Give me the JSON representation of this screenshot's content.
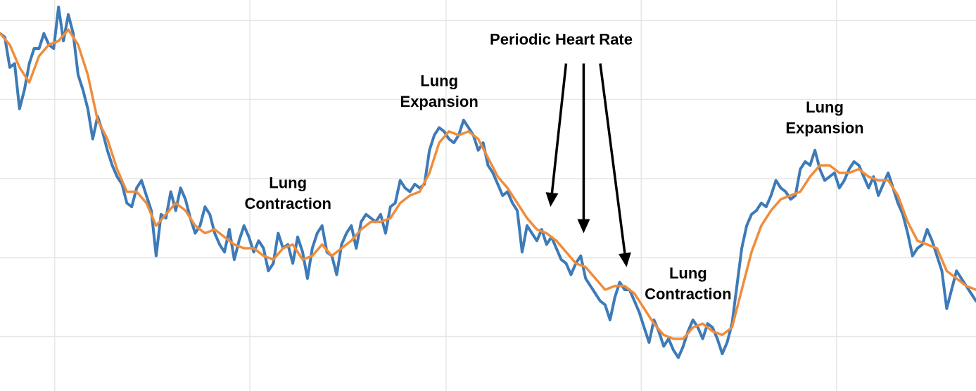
{
  "chart_data": {
    "type": "line",
    "title": "",
    "xlabel": "",
    "ylabel": "",
    "grid": true,
    "xlim": [
      0,
      100
    ],
    "ylim": [
      0,
      100
    ],
    "x_gridlines": [
      5.6,
      25.6,
      45.7,
      65.7,
      85.7
    ],
    "y_gridlines": [
      12.6,
      33.5,
      54.5,
      75.5,
      96.4
    ],
    "series": [
      {
        "color": "#3d7ab8",
        "values": [
          [
            0,
            93
          ],
          [
            0.5,
            92
          ],
          [
            1,
            84
          ],
          [
            1.5,
            85
          ],
          [
            2,
            73
          ],
          [
            2.5,
            78
          ],
          [
            3,
            85
          ],
          [
            3.5,
            89
          ],
          [
            4,
            89
          ],
          [
            4.5,
            93
          ],
          [
            5,
            90
          ],
          [
            5.5,
            89
          ],
          [
            6,
            100
          ],
          [
            6.5,
            91
          ],
          [
            7,
            98
          ],
          [
            7.5,
            93
          ],
          [
            8,
            82
          ],
          [
            8.5,
            78
          ],
          [
            9,
            73
          ],
          [
            9.5,
            65
          ],
          [
            10,
            71
          ],
          [
            10.5,
            67
          ],
          [
            11,
            62
          ],
          [
            11.5,
            58
          ],
          [
            12,
            55
          ],
          [
            12.5,
            53
          ],
          [
            13,
            48
          ],
          [
            13.5,
            47
          ],
          [
            14,
            52
          ],
          [
            14.5,
            54
          ],
          [
            15,
            50
          ],
          [
            15.5,
            46
          ],
          [
            16,
            34
          ],
          [
            16.5,
            45
          ],
          [
            17,
            44
          ],
          [
            17.5,
            51
          ],
          [
            18,
            46
          ],
          [
            18.5,
            52
          ],
          [
            19,
            49
          ],
          [
            19.5,
            44
          ],
          [
            20,
            40
          ],
          [
            20.5,
            42
          ],
          [
            21,
            47
          ],
          [
            21.5,
            45
          ],
          [
            22,
            40
          ],
          [
            22.5,
            37
          ],
          [
            23,
            35
          ],
          [
            23.5,
            41
          ],
          [
            24,
            33
          ],
          [
            24.5,
            38
          ],
          [
            25,
            42
          ],
          [
            25.5,
            39
          ],
          [
            26,
            35
          ],
          [
            26.5,
            38
          ],
          [
            27,
            36
          ],
          [
            27.5,
            30
          ],
          [
            28,
            32
          ],
          [
            28.5,
            40
          ],
          [
            29,
            36
          ],
          [
            29.5,
            37
          ],
          [
            30,
            32
          ],
          [
            30.5,
            39
          ],
          [
            31,
            35
          ],
          [
            31.5,
            28
          ],
          [
            32,
            36
          ],
          [
            32.5,
            40
          ],
          [
            33,
            42
          ],
          [
            33.5,
            35
          ],
          [
            34,
            34
          ],
          [
            34.5,
            29
          ],
          [
            35,
            37
          ],
          [
            35.5,
            40
          ],
          [
            36,
            42
          ],
          [
            36.5,
            36
          ],
          [
            37,
            43
          ],
          [
            37.5,
            45
          ],
          [
            38,
            44
          ],
          [
            38.5,
            43
          ],
          [
            39,
            45
          ],
          [
            39.5,
            40
          ],
          [
            40,
            47
          ],
          [
            40.5,
            48
          ],
          [
            41,
            54
          ],
          [
            41.5,
            52
          ],
          [
            42,
            51
          ],
          [
            42.5,
            53
          ],
          [
            43,
            52
          ],
          [
            43.5,
            53
          ],
          [
            44,
            62
          ],
          [
            44.5,
            66
          ],
          [
            45,
            68
          ],
          [
            45.5,
            67
          ],
          [
            46,
            65
          ],
          [
            46.5,
            64
          ],
          [
            47,
            66
          ],
          [
            47.5,
            70
          ],
          [
            48,
            68
          ],
          [
            48.5,
            66
          ],
          [
            49,
            62
          ],
          [
            49.5,
            64
          ],
          [
            50,
            58
          ],
          [
            50.5,
            56
          ],
          [
            51,
            53
          ],
          [
            51.5,
            50
          ],
          [
            52,
            51
          ],
          [
            52.5,
            48
          ],
          [
            53,
            46
          ],
          [
            53.5,
            35
          ],
          [
            54,
            42
          ],
          [
            54.5,
            40
          ],
          [
            55,
            38
          ],
          [
            55.5,
            41
          ],
          [
            56,
            37
          ],
          [
            56.5,
            39
          ],
          [
            57,
            36
          ],
          [
            57.5,
            33
          ],
          [
            58,
            32
          ],
          [
            58.5,
            29
          ],
          [
            59,
            32
          ],
          [
            59.5,
            34
          ],
          [
            60,
            28
          ],
          [
            60.5,
            26
          ],
          [
            61,
            24
          ],
          [
            61.5,
            22
          ],
          [
            62,
            21
          ],
          [
            62.5,
            17
          ],
          [
            63,
            23
          ],
          [
            63.5,
            27
          ],
          [
            64,
            25
          ],
          [
            64.5,
            25
          ],
          [
            65,
            22
          ],
          [
            65.5,
            19
          ],
          [
            66,
            15
          ],
          [
            66.5,
            11
          ],
          [
            67,
            17
          ],
          [
            67.5,
            14
          ],
          [
            68,
            10
          ],
          [
            68.5,
            12
          ],
          [
            69,
            9
          ],
          [
            69.5,
            7
          ],
          [
            70,
            10
          ],
          [
            70.5,
            14
          ],
          [
            71,
            17
          ],
          [
            71.5,
            15
          ],
          [
            72,
            12
          ],
          [
            72.5,
            16
          ],
          [
            73,
            15
          ],
          [
            73.5,
            12
          ],
          [
            74,
            8
          ],
          [
            74.5,
            11
          ],
          [
            75,
            16
          ],
          [
            75.5,
            26
          ],
          [
            76,
            36
          ],
          [
            76.5,
            42
          ],
          [
            77,
            45
          ],
          [
            77.5,
            46
          ],
          [
            78,
            48
          ],
          [
            78.5,
            47
          ],
          [
            79,
            50
          ],
          [
            79.5,
            54
          ],
          [
            80,
            52
          ],
          [
            80.5,
            51
          ],
          [
            81,
            49
          ],
          [
            81.5,
            50
          ],
          [
            82,
            57
          ],
          [
            82.5,
            59
          ],
          [
            83,
            58
          ],
          [
            83.5,
            62
          ],
          [
            84,
            57
          ],
          [
            84.5,
            54
          ],
          [
            85,
            55
          ],
          [
            85.5,
            56
          ],
          [
            86,
            52
          ],
          [
            86.5,
            54
          ],
          [
            87,
            57
          ],
          [
            87.5,
            59
          ],
          [
            88,
            58
          ],
          [
            88.5,
            55
          ],
          [
            89,
            52
          ],
          [
            89.5,
            55
          ],
          [
            90,
            50
          ],
          [
            90.5,
            53
          ],
          [
            91,
            56
          ],
          [
            91.5,
            52
          ],
          [
            92,
            48
          ],
          [
            92.5,
            45
          ],
          [
            93,
            40
          ],
          [
            93.5,
            34
          ],
          [
            94,
            36
          ],
          [
            94.5,
            37
          ],
          [
            95,
            41
          ],
          [
            95.5,
            38
          ],
          [
            96,
            34
          ],
          [
            96.5,
            30
          ],
          [
            97,
            20
          ],
          [
            97.5,
            25
          ],
          [
            98,
            30
          ],
          [
            98.5,
            28
          ],
          [
            99,
            26
          ],
          [
            99.5,
            24
          ],
          [
            100,
            22
          ]
        ]
      },
      {
        "color": "#f08c3a",
        "values": [
          [
            0,
            93
          ],
          [
            1,
            90
          ],
          [
            2,
            84
          ],
          [
            3,
            80
          ],
          [
            4,
            87
          ],
          [
            5,
            90
          ],
          [
            6,
            91
          ],
          [
            7,
            94
          ],
          [
            8,
            90
          ],
          [
            9,
            82
          ],
          [
            10,
            70
          ],
          [
            11,
            65
          ],
          [
            12,
            57
          ],
          [
            13,
            51
          ],
          [
            14,
            51
          ],
          [
            15,
            48
          ],
          [
            16,
            42
          ],
          [
            17,
            45
          ],
          [
            18,
            48
          ],
          [
            19,
            46
          ],
          [
            20,
            42
          ],
          [
            21,
            40
          ],
          [
            22,
            41
          ],
          [
            23,
            39
          ],
          [
            24,
            37
          ],
          [
            25,
            36
          ],
          [
            26,
            36
          ],
          [
            27,
            34
          ],
          [
            28,
            33
          ],
          [
            29,
            36
          ],
          [
            30,
            37
          ],
          [
            31,
            33
          ],
          [
            32,
            34
          ],
          [
            33,
            37
          ],
          [
            34,
            34
          ],
          [
            35,
            36
          ],
          [
            36,
            38
          ],
          [
            37,
            41
          ],
          [
            38,
            43
          ],
          [
            39,
            43
          ],
          [
            40,
            44
          ],
          [
            41,
            48
          ],
          [
            42,
            50
          ],
          [
            43,
            51
          ],
          [
            44,
            56
          ],
          [
            45,
            64
          ],
          [
            46,
            67
          ],
          [
            47,
            66
          ],
          [
            48,
            67
          ],
          [
            49,
            65
          ],
          [
            50,
            60
          ],
          [
            51,
            55
          ],
          [
            52,
            52
          ],
          [
            53,
            48
          ],
          [
            54,
            44
          ],
          [
            55,
            41
          ],
          [
            56,
            40
          ],
          [
            57,
            38
          ],
          [
            58,
            35
          ],
          [
            59,
            32
          ],
          [
            60,
            31
          ],
          [
            61,
            28
          ],
          [
            62,
            25
          ],
          [
            63,
            26
          ],
          [
            64,
            26
          ],
          [
            65,
            24
          ],
          [
            66,
            20
          ],
          [
            67,
            16
          ],
          [
            68,
            13
          ],
          [
            69,
            12
          ],
          [
            70,
            12
          ],
          [
            71,
            15
          ],
          [
            72,
            16
          ],
          [
            73,
            14
          ],
          [
            74,
            13
          ],
          [
            75,
            15
          ],
          [
            76,
            25
          ],
          [
            77,
            35
          ],
          [
            78,
            42
          ],
          [
            79,
            46
          ],
          [
            80,
            49
          ],
          [
            81,
            50
          ],
          [
            82,
            51
          ],
          [
            83,
            55
          ],
          [
            84,
            58
          ],
          [
            85,
            58
          ],
          [
            86,
            56
          ],
          [
            87,
            56
          ],
          [
            88,
            57
          ],
          [
            89,
            55
          ],
          [
            90,
            54
          ],
          [
            91,
            54
          ],
          [
            92,
            50
          ],
          [
            93,
            43
          ],
          [
            94,
            38
          ],
          [
            95,
            37
          ],
          [
            96,
            36
          ],
          [
            97,
            30
          ],
          [
            98,
            28
          ],
          [
            99,
            26
          ],
          [
            100,
            25
          ]
        ]
      }
    ],
    "annotations": [
      {
        "text": "Periodic Heart Rate",
        "x": 57.5,
        "y": 90
      },
      {
        "text": "Lung",
        "x": 45,
        "y": 79
      },
      {
        "text": "Expansion",
        "x": 45,
        "y": 73.5
      },
      {
        "text": "Lung",
        "x": 29.5,
        "y": 52
      },
      {
        "text": "Contraction",
        "x": 29.5,
        "y": 46.5
      },
      {
        "text": "Lung",
        "x": 84.5,
        "y": 72
      },
      {
        "text": "Expansion",
        "x": 84.5,
        "y": 66.5
      },
      {
        "text": "Lung",
        "x": 70.5,
        "y": 28
      },
      {
        "text": "Contraction",
        "x": 70.5,
        "y": 22.5
      }
    ],
    "arrows": [
      {
        "from": [
          58,
          85
        ],
        "to": [
          56.4,
          47
        ]
      },
      {
        "from": [
          59.8,
          85
        ],
        "to": [
          59.8,
          40
        ]
      },
      {
        "from": [
          61.5,
          85
        ],
        "to": [
          64.2,
          31
        ]
      }
    ]
  }
}
